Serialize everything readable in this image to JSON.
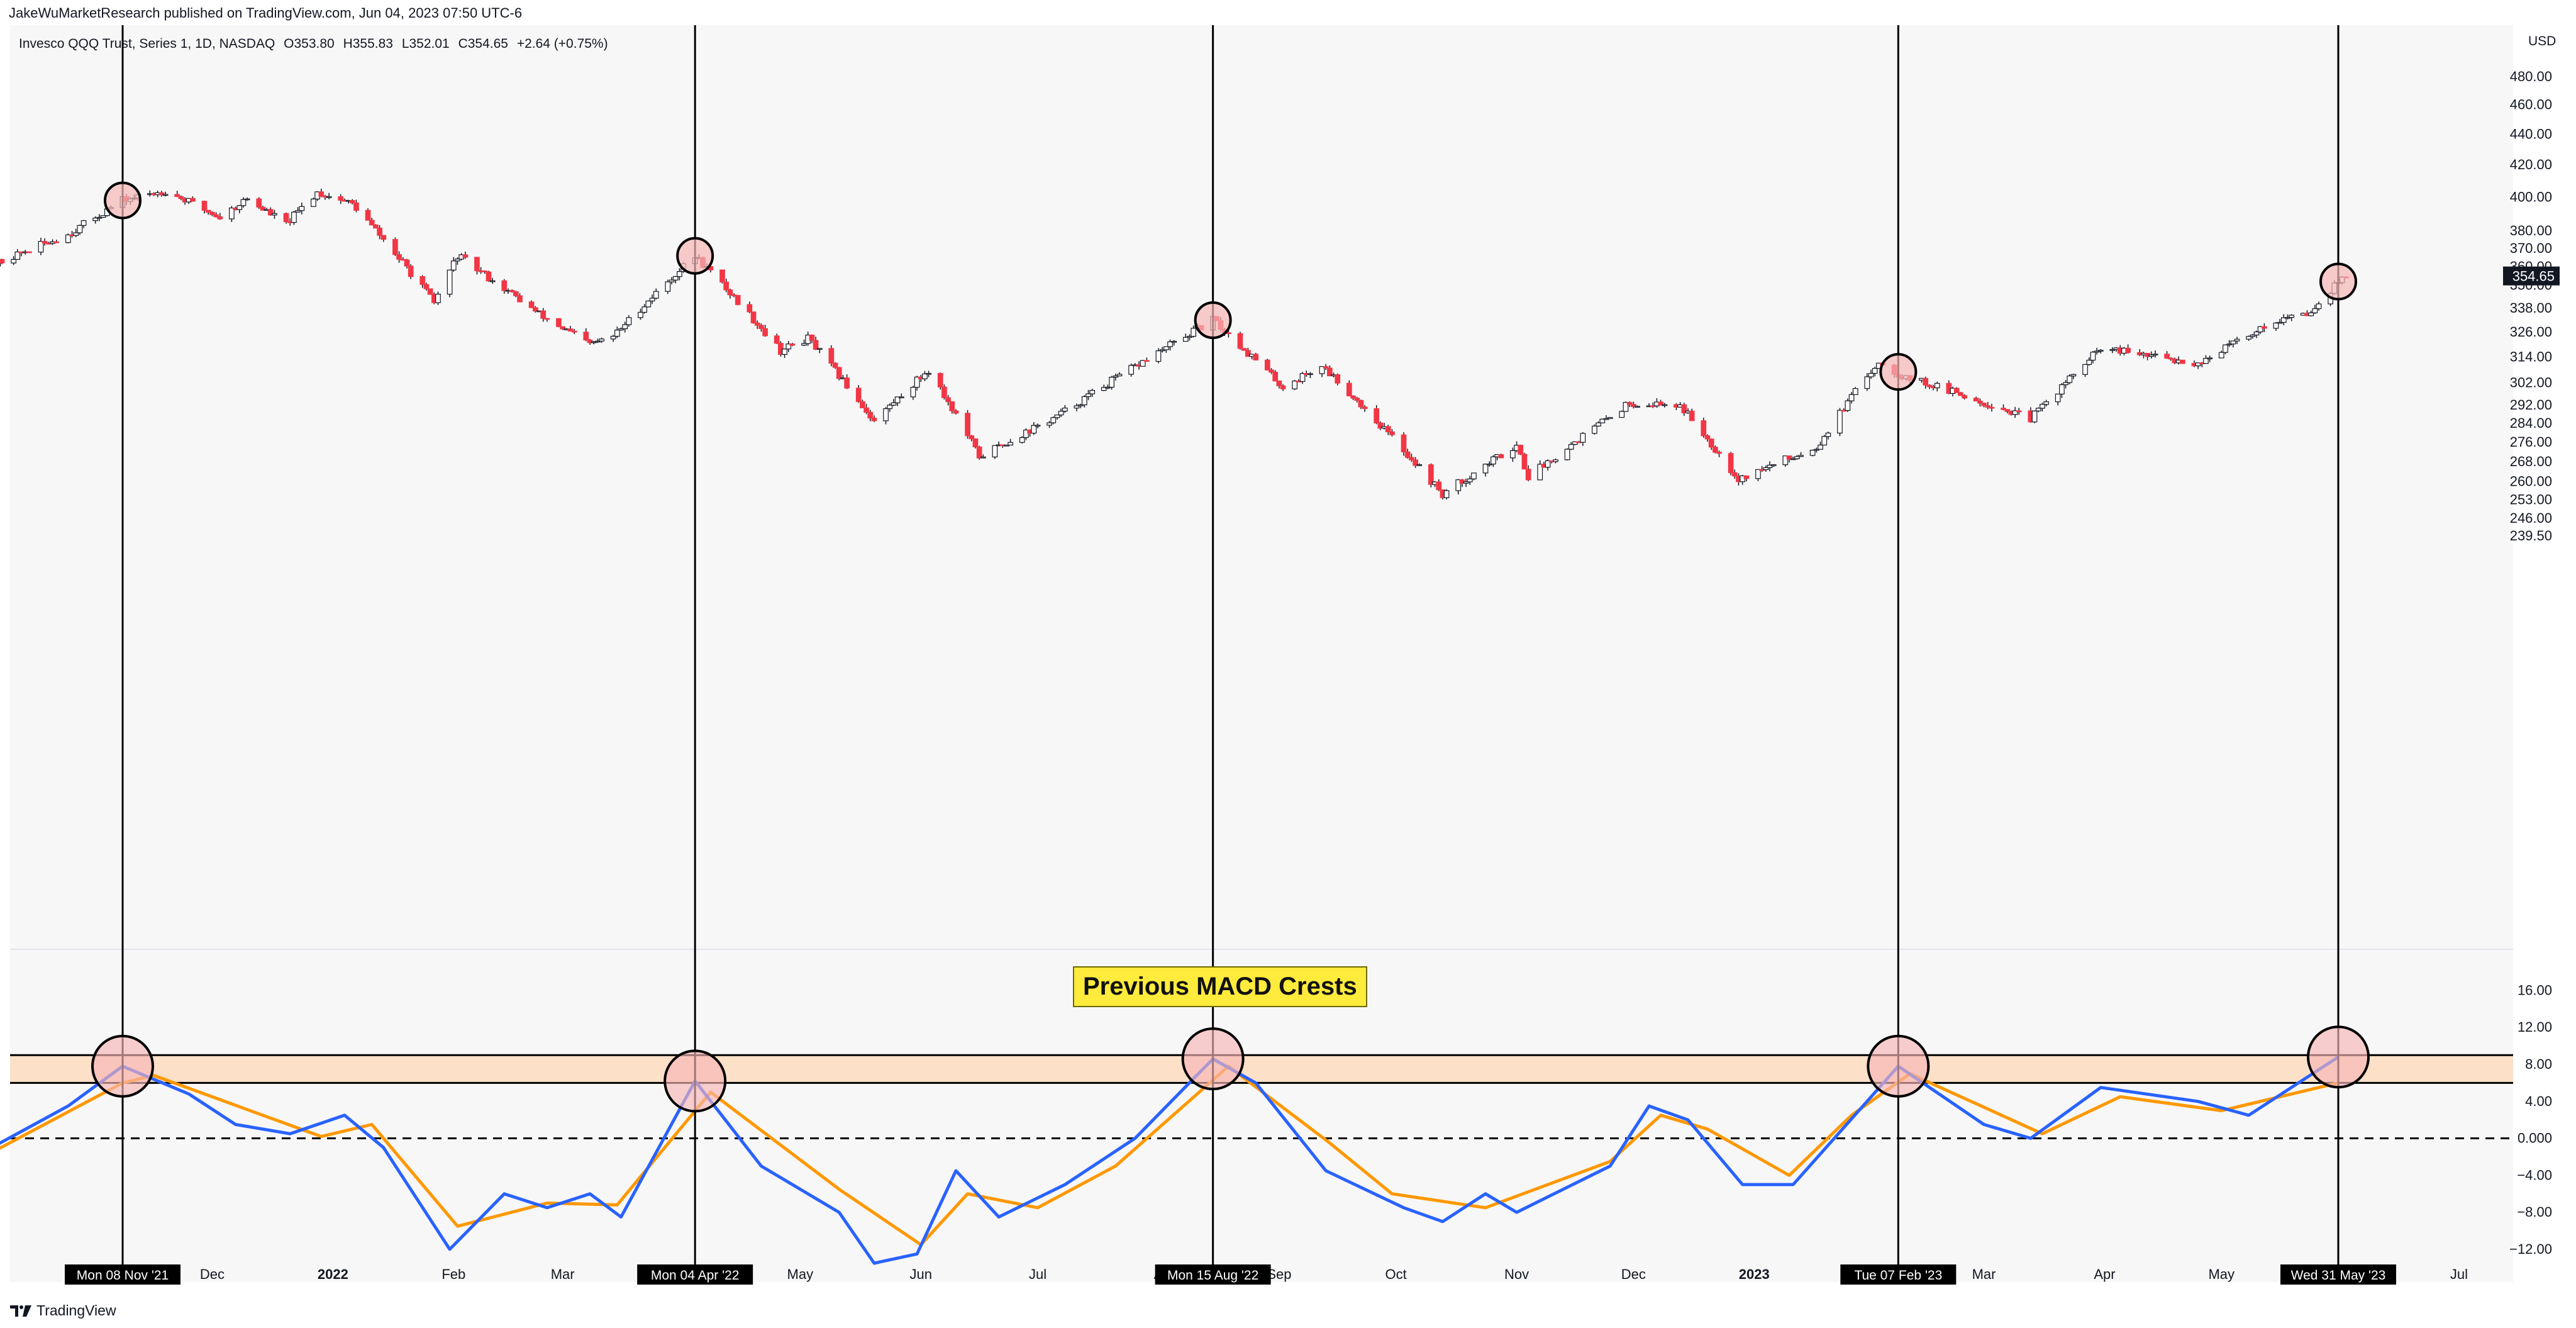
{
  "header": {
    "published": "JakeWuMarketResearch published on TradingView.com, Jun 04, 2023 07:50 UTC-6",
    "symbol": "Invesco QQQ Trust, Series 1, 1D, NASDAQ",
    "open": "O353.80",
    "high": "H355.83",
    "low": "L352.01",
    "close": "C354.65",
    "change": "+2.64 (+0.75%)"
  },
  "footer": {
    "brand": "TradingView"
  },
  "annotation": {
    "label": "Previous MACD Crests"
  },
  "colors": {
    "up": "#ffffff",
    "down": "#f23645",
    "wick": "#131722",
    "macd": "#2962ff",
    "signal": "#ff9800",
    "band": "#fce0c8",
    "circle_fill": "#f7b6b6",
    "highlight_bg": "#000000"
  },
  "chart_data": [
    {
      "type": "candlestick",
      "currency": "USD",
      "yticks": [
        480.0,
        460.0,
        440.0,
        420.0,
        400.0,
        380.0,
        370.0,
        360.0,
        350.0,
        338.0,
        326.0,
        314.0,
        302.0,
        292.0,
        284.0,
        276.0,
        268.0,
        260.0,
        253.0,
        246.0,
        239.5
      ],
      "yscale": "log",
      "last_price": "354.65",
      "price_path": [
        {
          "date": "2021-10-01",
          "value": 357
        },
        {
          "date": "2021-10-25",
          "value": 378
        },
        {
          "date": "2021-11-08",
          "value": 398
        },
        {
          "date": "2021-11-19",
          "value": 404
        },
        {
          "date": "2021-12-03",
          "value": 388
        },
        {
          "date": "2021-12-10",
          "value": 399
        },
        {
          "date": "2021-12-20",
          "value": 384
        },
        {
          "date": "2021-12-28",
          "value": 403
        },
        {
          "date": "2022-01-06",
          "value": 396
        },
        {
          "date": "2022-01-27",
          "value": 341
        },
        {
          "date": "2022-02-02",
          "value": 366
        },
        {
          "date": "2022-02-23",
          "value": 335
        },
        {
          "date": "2022-03-08",
          "value": 320
        },
        {
          "date": "2022-03-14",
          "value": 324
        },
        {
          "date": "2022-04-04",
          "value": 366
        },
        {
          "date": "2022-04-26",
          "value": 317
        },
        {
          "date": "2022-05-03",
          "value": 323
        },
        {
          "date": "2022-05-20",
          "value": 285
        },
        {
          "date": "2022-06-03",
          "value": 308
        },
        {
          "date": "2022-06-16",
          "value": 270
        },
        {
          "date": "2022-07-06",
          "value": 287
        },
        {
          "date": "2022-08-15",
          "value": 332
        },
        {
          "date": "2022-09-02",
          "value": 300
        },
        {
          "date": "2022-09-12",
          "value": 310
        },
        {
          "date": "2022-10-13",
          "value": 255
        },
        {
          "date": "2022-11-01",
          "value": 275
        },
        {
          "date": "2022-11-04",
          "value": 262
        },
        {
          "date": "2022-11-30",
          "value": 293
        },
        {
          "date": "2022-12-13",
          "value": 292
        },
        {
          "date": "2022-12-28",
          "value": 261
        },
        {
          "date": "2023-01-17",
          "value": 274
        },
        {
          "date": "2023-02-02",
          "value": 312
        },
        {
          "date": "2023-02-07",
          "value": 306
        },
        {
          "date": "2023-03-13",
          "value": 286
        },
        {
          "date": "2023-03-31",
          "value": 318
        },
        {
          "date": "2023-04-25",
          "value": 311
        },
        {
          "date": "2023-05-15",
          "value": 332
        },
        {
          "date": "2023-05-23",
          "value": 335
        },
        {
          "date": "2023-05-31",
          "value": 352
        },
        {
          "date": "2023-06-02",
          "value": 354.65
        }
      ]
    },
    {
      "type": "line",
      "name": "MACD",
      "yticks": [
        "16.00",
        "12.00",
        "8.00",
        "4.00",
        "0.000",
        "−4.00",
        "−8.00",
        "−12.00"
      ],
      "ylim": [
        -15,
        18
      ],
      "band": [
        6.0,
        9.0
      ],
      "zero_line": 0,
      "macd_path": [
        {
          "date": "2021-10-01",
          "value": -2.0
        },
        {
          "date": "2021-10-25",
          "value": 3.5
        },
        {
          "date": "2021-11-08",
          "value": 7.8
        },
        {
          "date": "2021-11-25",
          "value": 4.8
        },
        {
          "date": "2021-12-07",
          "value": 1.5
        },
        {
          "date": "2021-12-21",
          "value": 0.5
        },
        {
          "date": "2022-01-04",
          "value": 2.5
        },
        {
          "date": "2022-01-14",
          "value": -1.0
        },
        {
          "date": "2022-01-31",
          "value": -12.0
        },
        {
          "date": "2022-02-14",
          "value": -6.0
        },
        {
          "date": "2022-02-25",
          "value": -7.5
        },
        {
          "date": "2022-03-08",
          "value": -6.0
        },
        {
          "date": "2022-03-16",
          "value": -8.5
        },
        {
          "date": "2022-04-04",
          "value": 6.2
        },
        {
          "date": "2022-04-21",
          "value": -3.0
        },
        {
          "date": "2022-05-11",
          "value": -8.0
        },
        {
          "date": "2022-05-20",
          "value": -13.5
        },
        {
          "date": "2022-05-31",
          "value": -12.5
        },
        {
          "date": "2022-06-10",
          "value": -3.5
        },
        {
          "date": "2022-06-21",
          "value": -8.5
        },
        {
          "date": "2022-07-08",
          "value": -5.0
        },
        {
          "date": "2022-07-26",
          "value": 0.0
        },
        {
          "date": "2022-08-15",
          "value": 8.6
        },
        {
          "date": "2022-08-26",
          "value": 6.0
        },
        {
          "date": "2022-09-13",
          "value": -3.5
        },
        {
          "date": "2022-10-03",
          "value": -7.5
        },
        {
          "date": "2022-10-13",
          "value": -9.0
        },
        {
          "date": "2022-10-24",
          "value": -6.0
        },
        {
          "date": "2022-11-01",
          "value": -8.0
        },
        {
          "date": "2022-11-25",
          "value": -3.0
        },
        {
          "date": "2022-12-05",
          "value": 3.5
        },
        {
          "date": "2022-12-15",
          "value": 2.0
        },
        {
          "date": "2022-12-29",
          "value": -5.0
        },
        {
          "date": "2023-01-11",
          "value": -5.0
        },
        {
          "date": "2023-02-07",
          "value": 7.8
        },
        {
          "date": "2023-03-01",
          "value": 1.5
        },
        {
          "date": "2023-03-13",
          "value": 0.0
        },
        {
          "date": "2023-03-31",
          "value": 5.5
        },
        {
          "date": "2023-04-25",
          "value": 4.0
        },
        {
          "date": "2023-05-08",
          "value": 2.5
        },
        {
          "date": "2023-05-31",
          "value": 8.8
        }
      ],
      "signal_path": [
        {
          "date": "2021-10-01",
          "value": -2.5
        },
        {
          "date": "2021-11-08",
          "value": 6.0
        },
        {
          "date": "2021-11-16",
          "value": 6.8
        },
        {
          "date": "2021-12-14",
          "value": 2.5
        },
        {
          "date": "2021-12-29",
          "value": 0.2
        },
        {
          "date": "2022-01-11",
          "value": 1.5
        },
        {
          "date": "2022-02-02",
          "value": -9.5
        },
        {
          "date": "2022-02-25",
          "value": -7.0
        },
        {
          "date": "2022-03-15",
          "value": -7.2
        },
        {
          "date": "2022-04-08",
          "value": 5.0
        },
        {
          "date": "2022-05-11",
          "value": -5.5
        },
        {
          "date": "2022-06-01",
          "value": -11.5
        },
        {
          "date": "2022-06-13",
          "value": -6.0
        },
        {
          "date": "2022-07-01",
          "value": -7.5
        },
        {
          "date": "2022-07-21",
          "value": -3.0
        },
        {
          "date": "2022-08-19",
          "value": 7.8
        },
        {
          "date": "2022-09-14",
          "value": -0.5
        },
        {
          "date": "2022-09-30",
          "value": -6.0
        },
        {
          "date": "2022-10-24",
          "value": -7.5
        },
        {
          "date": "2022-11-25",
          "value": -2.5
        },
        {
          "date": "2022-12-08",
          "value": 2.5
        },
        {
          "date": "2022-12-20",
          "value": 1.0
        },
        {
          "date": "2023-01-10",
          "value": -4.0
        },
        {
          "date": "2023-01-26",
          "value": 2.5
        },
        {
          "date": "2023-02-10",
          "value": 7.0
        },
        {
          "date": "2023-03-16",
          "value": 0.5
        },
        {
          "date": "2023-04-05",
          "value": 4.5
        },
        {
          "date": "2023-05-01",
          "value": 3.0
        },
        {
          "date": "2023-05-31",
          "value": 6.0
        }
      ]
    }
  ],
  "x_axis": {
    "ticks": [
      {
        "date": "2021-12-01",
        "label": "Dec",
        "bold": false
      },
      {
        "date": "2022-01-01",
        "label": "2022",
        "bold": true
      },
      {
        "date": "2022-02-01",
        "label": "Feb",
        "bold": false
      },
      {
        "date": "2022-03-01",
        "label": "Mar",
        "bold": false
      },
      {
        "date": "2022-05-01",
        "label": "May",
        "bold": false
      },
      {
        "date": "2022-06-01",
        "label": "Jun",
        "bold": false
      },
      {
        "date": "2022-07-01",
        "label": "Jul",
        "bold": false
      },
      {
        "date": "2022-09-01",
        "label": "Sep",
        "bold": false
      },
      {
        "date": "2022-10-01",
        "label": "Oct",
        "bold": false
      },
      {
        "date": "2022-11-01",
        "label": "Nov",
        "bold": false
      },
      {
        "date": "2022-12-01",
        "label": "Dec",
        "bold": false
      },
      {
        "date": "2023-01-01",
        "label": "2023",
        "bold": true
      },
      {
        "date": "2023-03-01",
        "label": "Mar",
        "bold": false
      },
      {
        "date": "2023-04-01",
        "label": "Apr",
        "bold": false
      },
      {
        "date": "2023-05-01",
        "label": "May",
        "bold": false
      },
      {
        "date": "2023-07-01",
        "label": "Jul",
        "bold": false
      }
    ],
    "partial_label": {
      "date": "2022-08-01",
      "label": "A"
    },
    "markers": [
      {
        "date": "2021-11-08",
        "label": "Mon 08 Nov '21",
        "price": 398
      },
      {
        "date": "2022-04-04",
        "label": "Mon 04 Apr '22",
        "price": 366
      },
      {
        "date": "2022-08-15",
        "label": "Mon 15 Aug '22",
        "price": 332
      },
      {
        "date": "2023-02-07",
        "label": "Tue 07 Feb '23",
        "price": 307
      },
      {
        "date": "2023-05-31",
        "label": "Wed 31 May '23",
        "price": 352
      }
    ]
  }
}
